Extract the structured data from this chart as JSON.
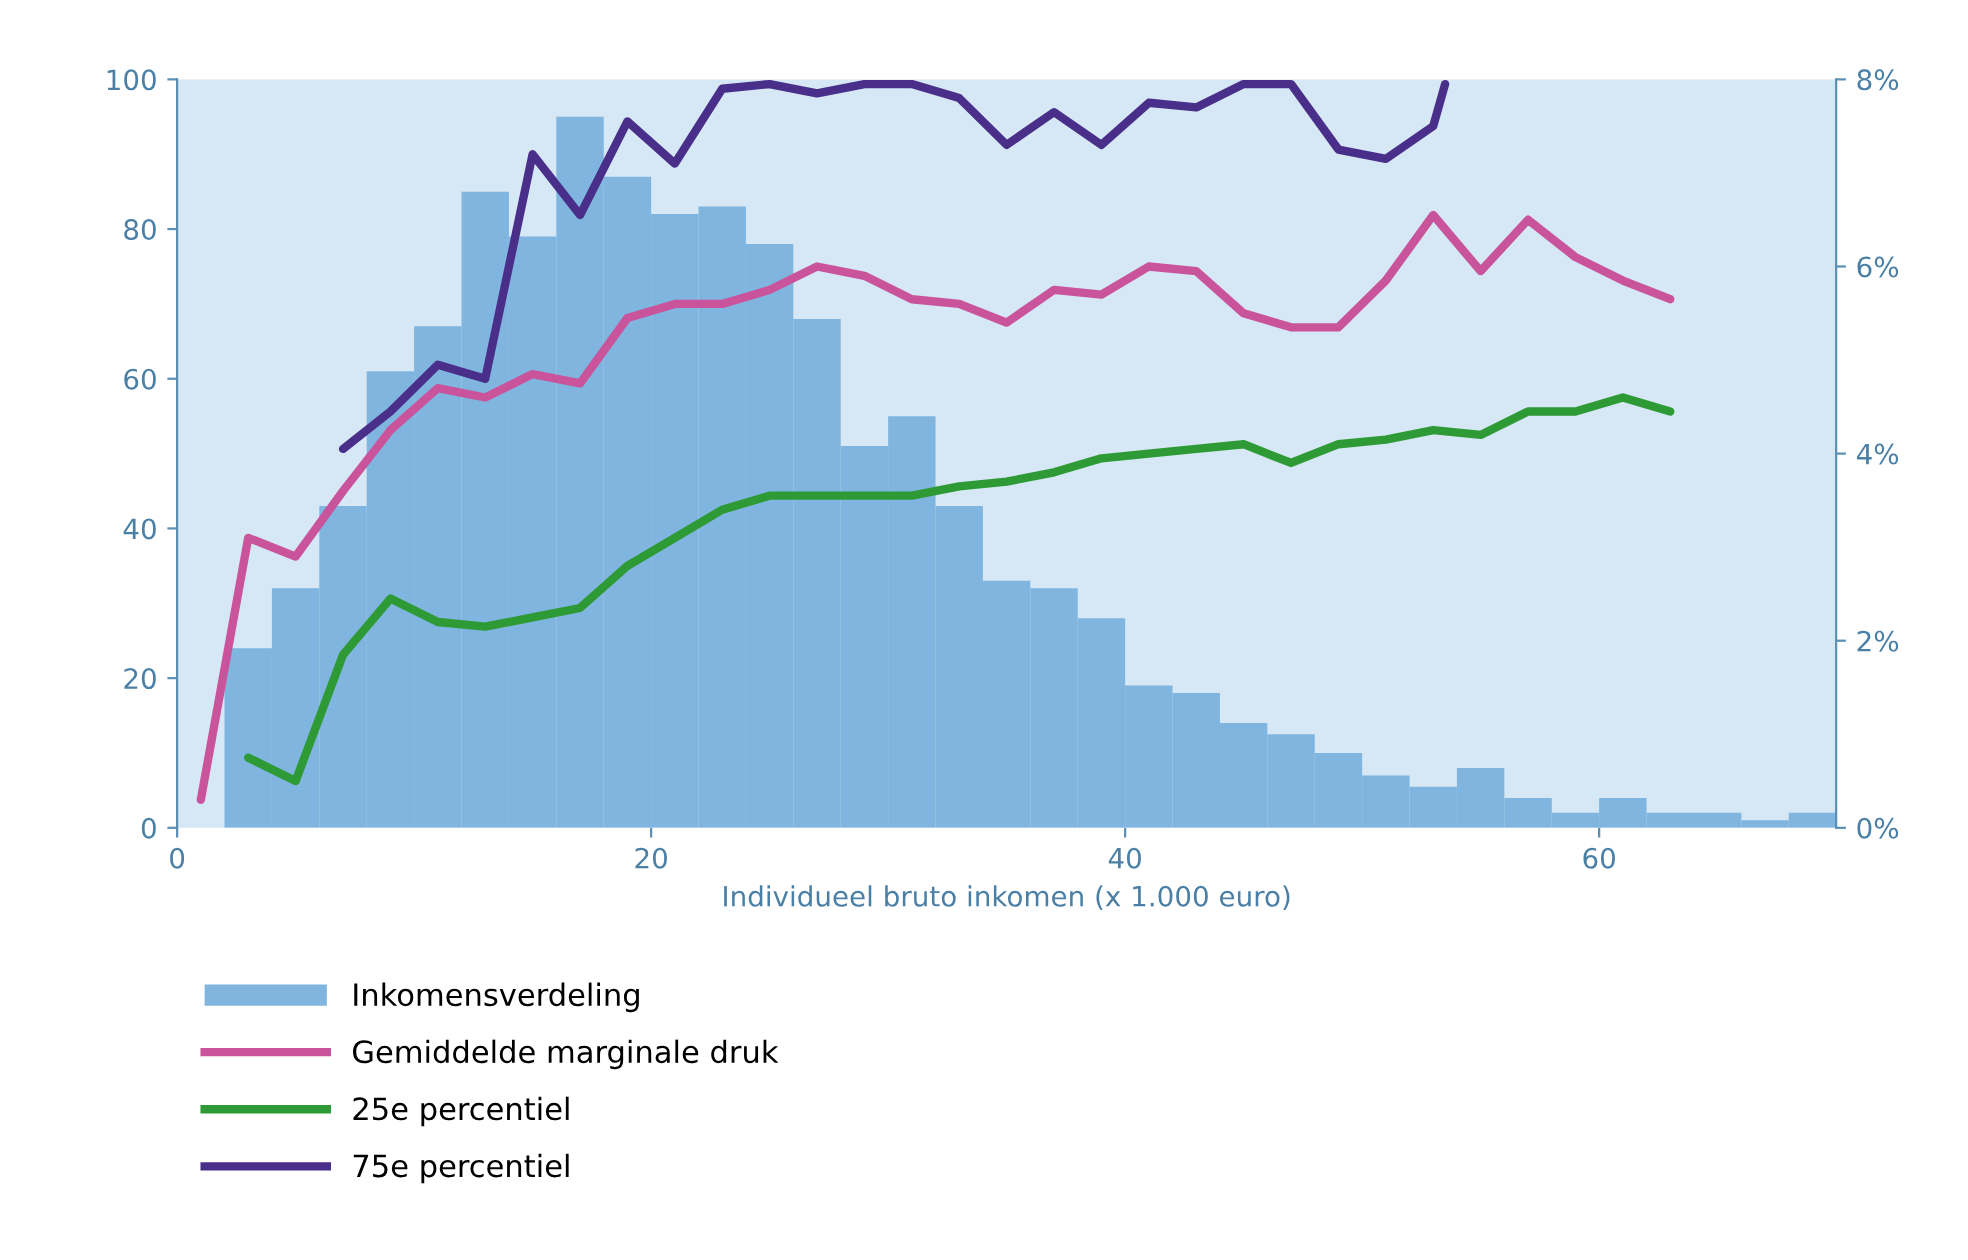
{
  "chart_data": {
    "type": "histogram",
    "xlabel": "Individueel bruto inkomen (x 1.000 euro)",
    "bins": [
      2,
      4,
      6,
      8,
      10,
      12,
      14,
      16,
      18,
      20,
      22,
      24,
      26,
      28,
      30,
      32,
      34,
      36,
      38,
      40,
      42,
      44,
      46,
      48,
      50,
      52,
      54,
      56,
      58,
      60,
      62,
      64,
      66,
      68,
      70
    ],
    "xlim": [
      0,
      70
    ],
    "xticks": [
      0,
      20,
      40,
      60
    ],
    "ylim": [
      0,
      100
    ],
    "yticks": [
      0,
      20,
      40,
      60,
      80,
      100
    ],
    "y2lim": [
      0,
      8
    ],
    "y2ticks": [
      {
        "value": 0,
        "label": "0%"
      },
      {
        "value": 2,
        "label": "2%"
      },
      {
        "value": 4,
        "label": "4%"
      },
      {
        "value": 6,
        "label": "6%"
      },
      {
        "value": 8,
        "label": "8%"
      }
    ],
    "series": [
      {
        "name": "Inkomensverdeling",
        "color": "#7fb5de",
        "values": [
          24,
          32,
          43,
          61,
          67,
          85,
          79,
          95,
          87,
          82,
          83,
          78,
          68,
          51,
          55,
          43,
          33,
          32,
          28,
          19,
          18,
          14,
          12.5,
          10,
          7,
          5.5,
          8,
          4,
          2,
          4,
          2,
          2,
          1,
          2
        ]
      },
      {
        "name": "Gemiddelde marginale druk",
        "type": "line",
        "axis": "y2",
        "color": "#c9549b",
        "x": [
          1,
          3,
          5,
          7,
          9,
          11,
          13,
          15,
          17,
          19,
          21,
          23,
          25,
          27,
          29,
          31,
          33,
          35,
          37,
          39,
          41,
          43,
          45,
          47,
          49,
          51,
          53,
          55,
          57,
          59,
          61,
          63
        ],
        "values": [
          0.3,
          3.1,
          2.9,
          3.6,
          4.25,
          4.7,
          4.6,
          4.85,
          4.75,
          5.45,
          5.6,
          5.6,
          5.75,
          6.0,
          5.9,
          5.65,
          5.6,
          5.4,
          5.75,
          5.7,
          6.0,
          5.95,
          5.5,
          5.35,
          5.35,
          5.85,
          6.55,
          5.95,
          6.5,
          6.1,
          5.85,
          5.65
        ]
      },
      {
        "name": "25e percentiel",
        "type": "line",
        "axis": "y2",
        "color": "#2e9a35",
        "x": [
          3,
          5,
          7,
          9,
          11,
          13,
          15,
          17,
          19,
          21,
          23,
          25,
          27,
          29,
          31,
          33,
          35,
          37,
          39,
          41,
          43,
          45,
          47,
          49,
          51,
          53,
          55,
          57,
          59,
          61,
          63
        ],
        "values": [
          0.75,
          0.5,
          1.85,
          2.45,
          2.2,
          2.15,
          2.25,
          2.35,
          2.8,
          3.1,
          3.4,
          3.55,
          3.55,
          3.55,
          3.55,
          3.65,
          3.7,
          3.8,
          3.95,
          4.0,
          4.05,
          4.1,
          3.9,
          4.1,
          4.15,
          4.25,
          4.2,
          4.45,
          4.45,
          4.6,
          4.45
        ]
      },
      {
        "name": "75e percentiel",
        "type": "line",
        "axis": "y2",
        "color": "#4a2f8a",
        "x": [
          7,
          9,
          11,
          13,
          15,
          17,
          19,
          21,
          23,
          25,
          27,
          29,
          31,
          33,
          35,
          37,
          39,
          41,
          43,
          45,
          47,
          49,
          51,
          53,
          53.5
        ],
        "values": [
          4.05,
          4.45,
          4.95,
          4.8,
          7.2,
          6.55,
          7.55,
          7.1,
          7.9,
          7.95,
          7.85,
          7.95,
          7.95,
          7.8,
          7.3,
          7.65,
          7.3,
          7.75,
          7.7,
          7.95,
          7.95,
          7.25,
          7.15,
          7.5,
          7.95
        ]
      }
    ],
    "legend": "bottom",
    "grid": false
  }
}
